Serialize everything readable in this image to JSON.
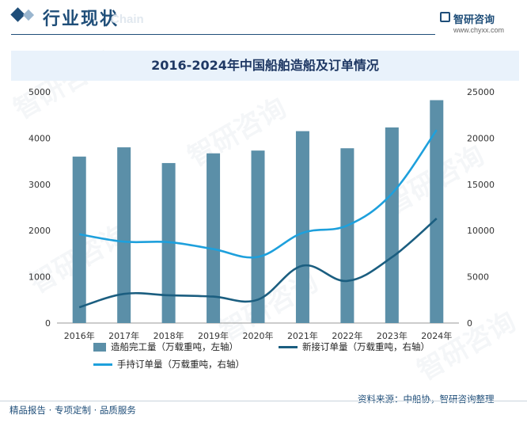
{
  "header": {
    "section_title": "行业现状",
    "section_title_en": "Chain",
    "brand": "智研咨询",
    "brand_url": "www.chyxx.com"
  },
  "footer": {
    "left": "精品报告 · 专项定制 · 品质服务",
    "source": "资料来源：中船协，智研咨询整理"
  },
  "watermark": "智研咨询",
  "colors": {
    "bar": "#5b8fa8",
    "new_orders_line": "#1b5e80",
    "holding_orders_line": "#1ea0dc",
    "title_band": "#e9f2fb",
    "brand": "#1f4e79"
  },
  "chart_data": {
    "type": "bar",
    "title": "2016-2024年中国船舶造船及订单情况",
    "categories": [
      "2016年",
      "2017年",
      "2018年",
      "2019年",
      "2020年",
      "2021年",
      "2022年",
      "2023年",
      "2024年"
    ],
    "left_axis": {
      "ylim": [
        0,
        5000
      ],
      "ticks": [
        "0",
        "1000",
        "2000",
        "3000",
        "4000",
        "5000"
      ]
    },
    "right_axis": {
      "ylim": [
        0,
        25000
      ],
      "ticks": [
        "0",
        "5000",
        "10000",
        "15000",
        "20000",
        "25000"
      ]
    },
    "series": [
      {
        "name": "造船完工量（万载重吨，左轴）",
        "type": "bar",
        "axis": "left",
        "values": [
          3600,
          3800,
          3460,
          3670,
          3730,
          4150,
          3780,
          4230,
          4820
        ]
      },
      {
        "name": "新接订单量（万载重吨，右轴）",
        "type": "line",
        "axis": "right",
        "values": [
          1700,
          3150,
          3000,
          2860,
          2530,
          6200,
          4550,
          7120,
          11300
        ]
      },
      {
        "name": "手持订单量（万载重吨，右轴）",
        "type": "line",
        "axis": "right",
        "values": [
          9600,
          8800,
          8750,
          8000,
          7150,
          9750,
          10550,
          14000,
          20870
        ]
      }
    ],
    "legend_position": "bottom",
    "grid": false
  }
}
